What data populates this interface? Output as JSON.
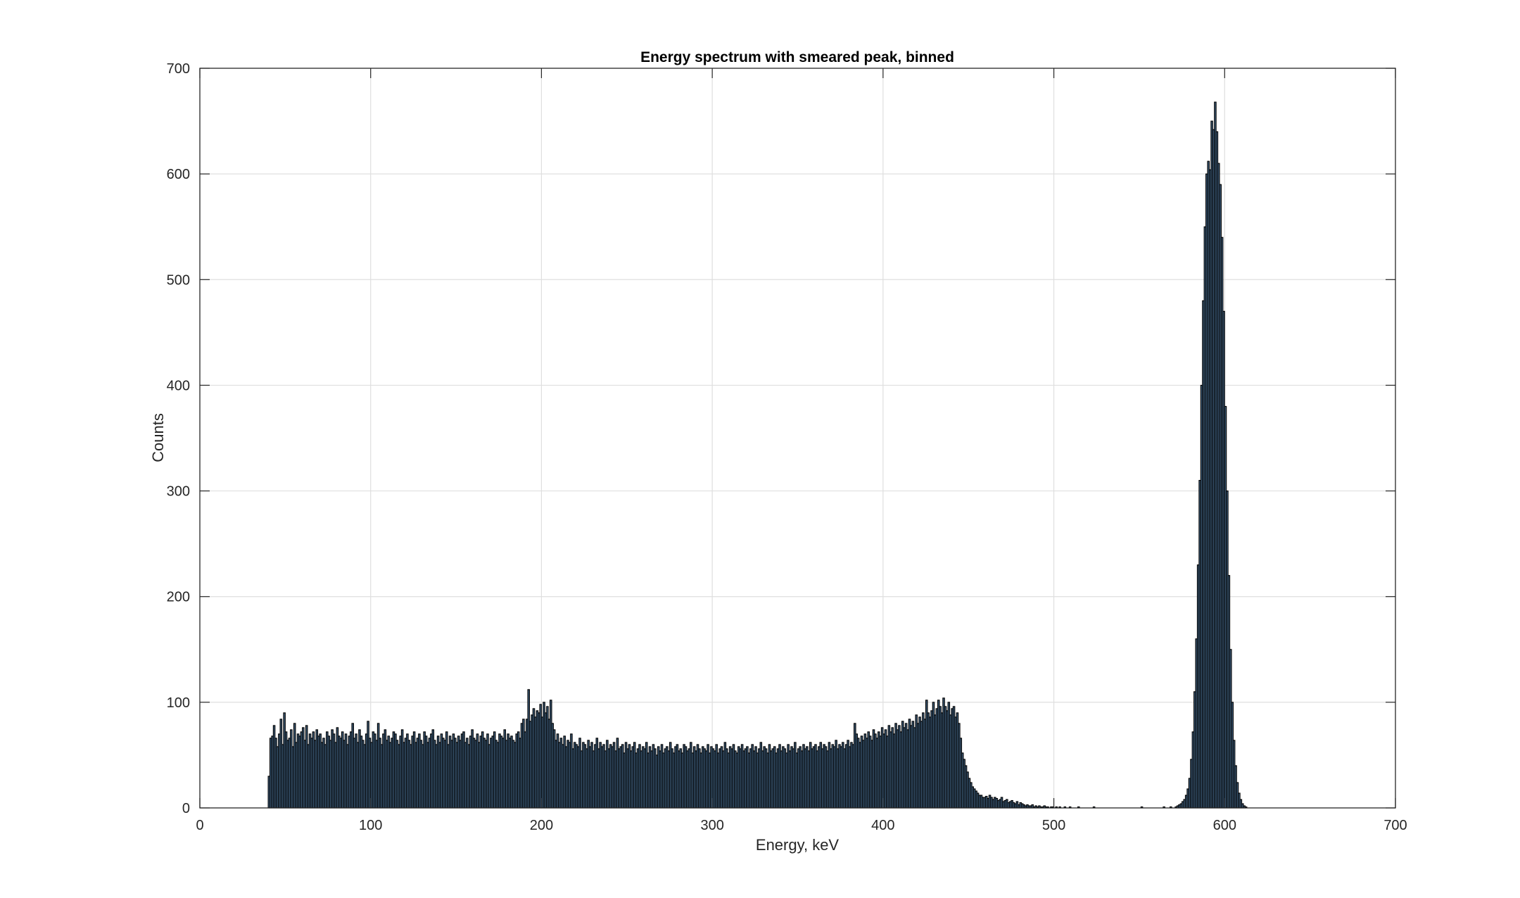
{
  "chart_data": {
    "type": "bar",
    "title": "Energy spectrum with smeared peak, binned",
    "xlabel": "Energy, keV",
    "ylabel": "Counts",
    "xlim": [
      0,
      700
    ],
    "ylim": [
      0,
      700
    ],
    "xticks": [
      "0",
      "100",
      "200",
      "300",
      "400",
      "500",
      "600",
      "700"
    ],
    "yticks": [
      "0",
      "100",
      "200",
      "300",
      "400",
      "500",
      "600",
      "700"
    ],
    "grid": true,
    "legend": "none",
    "bar_color": "#3f5f7d",
    "bar_edge_color": "#000000",
    "bin_width_keV": 1,
    "series": [
      {
        "x_start": 40,
        "values": [
          30,
          66,
          68,
          78,
          66,
          58,
          70,
          84,
          60,
          90,
          72,
          64,
          66,
          74,
          58,
          80,
          62,
          70,
          68,
          72,
          76,
          64,
          78,
          60,
          70,
          66,
          72,
          64,
          74,
          68,
          70,
          62,
          66,
          60,
          72,
          68,
          64,
          74,
          70,
          62,
          76,
          68,
          66,
          72,
          64,
          70,
          60,
          68,
          72,
          80,
          66,
          70,
          62,
          74,
          68,
          64,
          60,
          70,
          82,
          66,
          62,
          72,
          70,
          64,
          80,
          66,
          60,
          70,
          74,
          64,
          68,
          62,
          66,
          72,
          70,
          64,
          60,
          68,
          74,
          62,
          66,
          70,
          64,
          60,
          68,
          72,
          62,
          66,
          70,
          64,
          60,
          72,
          68,
          62,
          66,
          70,
          74,
          64,
          60,
          68,
          62,
          70,
          66,
          64,
          72,
          60,
          68,
          64,
          70,
          66,
          62,
          68,
          64,
          70,
          72,
          62,
          66,
          60,
          68,
          74,
          66,
          64,
          70,
          62,
          68,
          72,
          66,
          64,
          70,
          60,
          66,
          68,
          72,
          64,
          62,
          70,
          68,
          66,
          74,
          64,
          70,
          66,
          68,
          64,
          62,
          70,
          72,
          66,
          80,
          84,
          72,
          84,
          112,
          82,
          88,
          94,
          86,
          92,
          90,
          98,
          86,
          100,
          90,
          96,
          84,
          102,
          80,
          74,
          64,
          70,
          62,
          66,
          60,
          68,
          58,
          64,
          62,
          70,
          56,
          62,
          60,
          58,
          66,
          54,
          62,
          60,
          56,
          64,
          58,
          62,
          54,
          60,
          66,
          56,
          62,
          58,
          60,
          54,
          64,
          56,
          60,
          58,
          62,
          54,
          66,
          56,
          58,
          60,
          52,
          62,
          56,
          60,
          54,
          58,
          62,
          52,
          56,
          60,
          54,
          58,
          56,
          62,
          52,
          58,
          54,
          60,
          56,
          50,
          58,
          54,
          60,
          52,
          56,
          58,
          54,
          62,
          56,
          52,
          58,
          60,
          54,
          56,
          52,
          60,
          58,
          54,
          56,
          62,
          52,
          58,
          54,
          60,
          56,
          52,
          58,
          56,
          54,
          60,
          52,
          58,
          56,
          54,
          60,
          52,
          56,
          58,
          54,
          62,
          56,
          52,
          58,
          56,
          60,
          54,
          52,
          58,
          56,
          60,
          54,
          56,
          58,
          52,
          56,
          60,
          54,
          58,
          52,
          56,
          62,
          54,
          58,
          56,
          52,
          60,
          54,
          56,
          58,
          52,
          56,
          60,
          54,
          58,
          56,
          52,
          60,
          54,
          58,
          56,
          62,
          52,
          56,
          58,
          54,
          60,
          56,
          58,
          54,
          62,
          56,
          58,
          60,
          54,
          58,
          62,
          56,
          60,
          58,
          54,
          62,
          56,
          60,
          58,
          64,
          56,
          60,
          58,
          62,
          56,
          60,
          64,
          58,
          62,
          60,
          80,
          70,
          66,
          62,
          68,
          64,
          70,
          66,
          72,
          68,
          64,
          74,
          70,
          66,
          72,
          68,
          76,
          70,
          74,
          68,
          78,
          72,
          76,
          70,
          80,
          74,
          78,
          72,
          82,
          76,
          80,
          74,
          84,
          78,
          82,
          76,
          88,
          80,
          86,
          82,
          90,
          84,
          102,
          90,
          86,
          92,
          100,
          88,
          94,
          102,
          96,
          90,
          104,
          96,
          92,
          100,
          88,
          94,
          96,
          86,
          90,
          80,
          66,
          52,
          46,
          40,
          34,
          28,
          24,
          20,
          18,
          16,
          14,
          12,
          12,
          10,
          10,
          11,
          9,
          12,
          10,
          8,
          10,
          9,
          7,
          8,
          10,
          6,
          7,
          8,
          5,
          6,
          7,
          5,
          4,
          6,
          3,
          5,
          4,
          3,
          2,
          3,
          2,
          2,
          3,
          1,
          2,
          1,
          2,
          1,
          1,
          2,
          1,
          1,
          0,
          1,
          1,
          0,
          1,
          0,
          1,
          0,
          0,
          1,
          0,
          0,
          1,
          0,
          0,
          0,
          0,
          1,
          0,
          0,
          0,
          0,
          0,
          0,
          0,
          0,
          1,
          0,
          0,
          0,
          0,
          0,
          0,
          0,
          0,
          0,
          0,
          0,
          0,
          0,
          0,
          0,
          0,
          0,
          0,
          0,
          0,
          0,
          0,
          0,
          0,
          0,
          0,
          0,
          1,
          0,
          0,
          0,
          0,
          0,
          0,
          0,
          0,
          0,
          0,
          0,
          0,
          1,
          0,
          0,
          0,
          1,
          0,
          0,
          1,
          2,
          3,
          4,
          6,
          8,
          12,
          18,
          28,
          46,
          72,
          110,
          160,
          230,
          310,
          400,
          480,
          550,
          600,
          612,
          604,
          650,
          642,
          668,
          640,
          610,
          590,
          540,
          470,
          380,
          300,
          220,
          150,
          100,
          64,
          40,
          24,
          14,
          8,
          4,
          2,
          1,
          0
        ]
      }
    ]
  }
}
